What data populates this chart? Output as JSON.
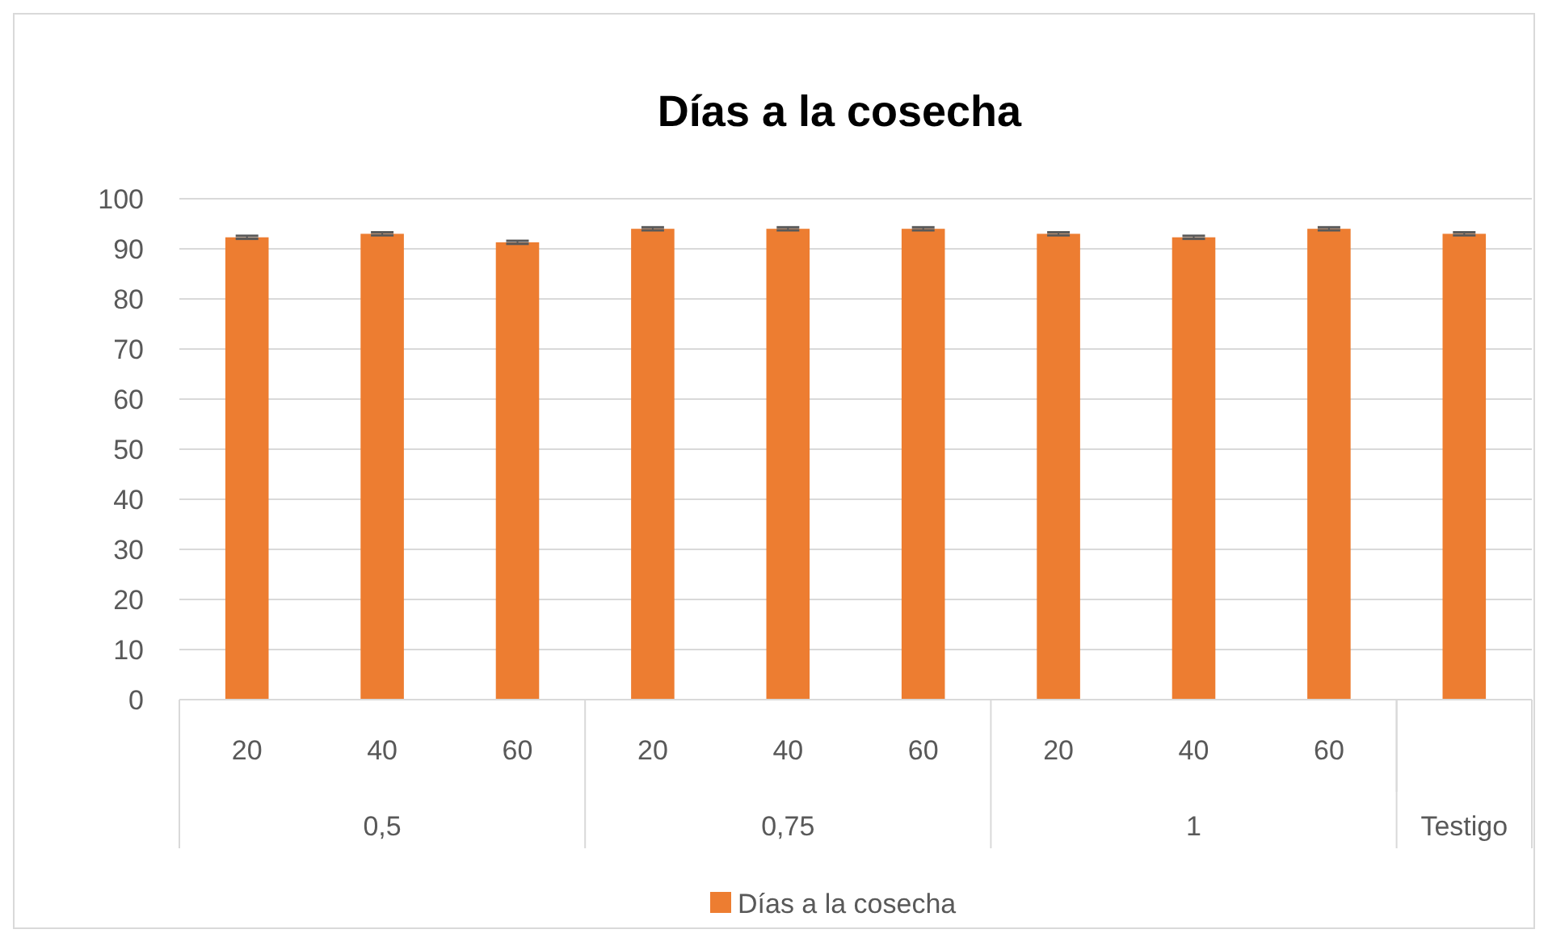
{
  "chart_data": {
    "type": "bar",
    "title": "Días a la cosecha",
    "categories": [
      "20",
      "40",
      "60",
      "20",
      "40",
      "60",
      "20",
      "40",
      "60",
      null
    ],
    "series": [
      {
        "name": "Días a la cosecha",
        "color": "#ed7d31",
        "values": [
          92.3,
          93,
          91.3,
          94,
          94,
          94,
          93,
          92.3,
          94,
          93
        ],
        "errors": [
          0.3,
          0.3,
          0.3,
          0.3,
          0.3,
          0.3,
          0.3,
          0.3,
          0.3,
          0.3
        ]
      }
    ],
    "annotations": [
      "0,5",
      "0,75",
      "1",
      "Testigo"
    ],
    "ylim": [
      0,
      100
    ],
    "yticks": [
      0,
      10,
      20,
      30,
      40,
      50,
      60,
      70,
      80,
      90,
      100
    ],
    "grid": "y",
    "legend": "bottom"
  }
}
